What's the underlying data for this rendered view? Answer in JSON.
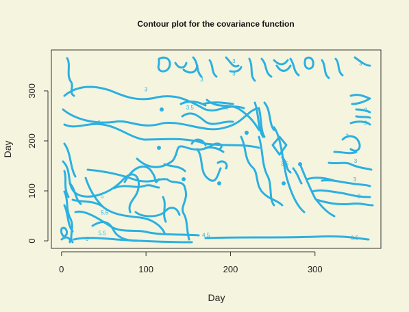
{
  "chart_data": {
    "type": "contour",
    "title": "Contour plot for the covariance function",
    "xlabel": "Day",
    "ylabel": "Day",
    "xlim": [
      -12,
      378
    ],
    "ylim": [
      -15,
      382
    ],
    "x_ticks": [
      0,
      100,
      200,
      300
    ],
    "y_ticks": [
      0,
      100,
      200,
      300
    ],
    "line_color": "#2bb0e0",
    "contour_levels": [
      "3",
      "3.5",
      "4",
      "4.5",
      "5",
      "5.5",
      "6"
    ],
    "contour_labels": [
      {
        "text": "3",
        "x": 100,
        "y": 303
      },
      {
        "text": "3",
        "x": 166,
        "y": 323
      },
      {
        "text": "3",
        "x": 204,
        "y": 360
      },
      {
        "text": "3",
        "x": 204,
        "y": 335
      },
      {
        "text": "3",
        "x": 354,
        "y": 355
      },
      {
        "text": "3",
        "x": 360,
        "y": 262
      },
      {
        "text": "3",
        "x": 360,
        "y": 236
      },
      {
        "text": "3",
        "x": 338,
        "y": 210
      },
      {
        "text": "3",
        "x": 348,
        "y": 160
      },
      {
        "text": "3",
        "x": 347,
        "y": 123
      },
      {
        "text": "3",
        "x": 352,
        "y": 90
      },
      {
        "text": "3.5",
        "x": 152,
        "y": 267
      },
      {
        "text": "3.5",
        "x": 193,
        "y": 267
      },
      {
        "text": "3.5",
        "x": 264,
        "y": 155
      },
      {
        "text": "3.5",
        "x": 347,
        "y": 6
      },
      {
        "text": "4",
        "x": 44,
        "y": 238
      },
      {
        "text": "4.5",
        "x": 171,
        "y": 12
      },
      {
        "text": "5",
        "x": 48,
        "y": 90
      },
      {
        "text": "5.5",
        "x": 51,
        "y": 57
      },
      {
        "text": "5.5",
        "x": 48,
        "y": 16
      },
      {
        "text": "6",
        "x": 30,
        "y": 4
      }
    ]
  }
}
